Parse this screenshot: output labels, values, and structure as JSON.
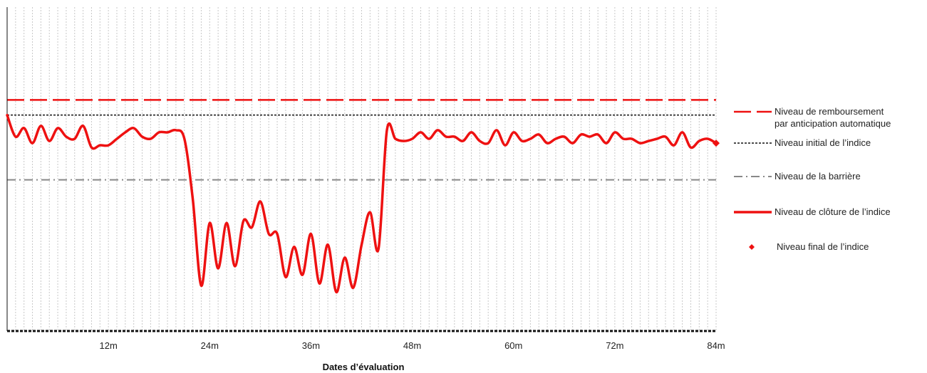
{
  "chart_data": {
    "type": "line",
    "title": "",
    "xlabel": "Dates d’évaluation",
    "ylabel": "",
    "xlim": [
      0,
      84
    ],
    "ylim": [
      0,
      150
    ],
    "x_ticks": [
      {
        "value": 12,
        "label": "12m"
      },
      {
        "value": 24,
        "label": "24m"
      },
      {
        "value": 36,
        "label": "36m"
      },
      {
        "value": 48,
        "label": "48m"
      },
      {
        "value": 60,
        "label": "60m"
      },
      {
        "value": 72,
        "label": "72m"
      },
      {
        "value": 84,
        "label": "84m"
      }
    ],
    "grid": "vertical dotted lines at each month",
    "legend_position": "right",
    "reference_lines": [
      {
        "name": "Niveau de remboursement par anticipation automatique",
        "value": 107,
        "color": "#ee1111",
        "style": "dashed"
      },
      {
        "name": "Niveau initial de l’indice",
        "value": 100,
        "color": "#111111",
        "style": "dotted"
      },
      {
        "name": "Niveau de la barrière",
        "value": 70,
        "color": "#888888",
        "style": "dashdot"
      }
    ],
    "series": [
      {
        "name": "Niveau de clôture de l’indice",
        "color": "#ee1111",
        "style": "solid",
        "x": [
          0,
          1,
          2,
          3,
          4,
          5,
          6,
          7,
          8,
          9,
          10,
          11,
          12,
          13,
          14,
          15,
          16,
          17,
          18,
          19,
          20,
          21,
          22,
          23,
          24,
          25,
          26,
          27,
          28,
          29,
          30,
          31,
          32,
          33,
          34,
          35,
          36,
          37,
          38,
          39,
          40,
          41,
          42,
          43,
          44,
          45,
          46,
          47,
          48,
          49,
          50,
          51,
          52,
          53,
          54,
          55,
          56,
          57,
          58,
          59,
          60,
          61,
          62,
          63,
          64,
          65,
          66,
          67,
          68,
          69,
          70,
          71,
          72,
          73,
          74,
          75,
          76,
          77,
          78,
          79,
          80,
          81,
          82,
          83,
          84
        ],
        "values": [
          100,
          90,
          94,
          87,
          95,
          88,
          94,
          90,
          89,
          95,
          85,
          86,
          86,
          89,
          92,
          94,
          90,
          89,
          92,
          92,
          93,
          89,
          61,
          21,
          50,
          29,
          50,
          30,
          51,
          48,
          60,
          45,
          45,
          25,
          39,
          26,
          45,
          22,
          40,
          18,
          34,
          20,
          40,
          55,
          38,
          93,
          89,
          88,
          89,
          92,
          89,
          93,
          90,
          90,
          88,
          92,
          88,
          87,
          93,
          86,
          92,
          88,
          89,
          91,
          87,
          89,
          90,
          87,
          91,
          90,
          91,
          87,
          92,
          89,
          89,
          87,
          88,
          89,
          90,
          86,
          92,
          85,
          88,
          89,
          87
        ]
      }
    ],
    "final_point": {
      "name": "Niveau final de l’indice",
      "x": 84,
      "value": 87,
      "color": "#ee1111"
    }
  },
  "legend": [
    {
      "key": "autocall",
      "line1": "Niveau de remboursement",
      "line2": "par anticipation automatique"
    },
    {
      "key": "initial",
      "line1": "Niveau initial de l’indice",
      "line2": ""
    },
    {
      "key": "barrier",
      "line1": "Niveau de la barrière",
      "line2": ""
    },
    {
      "key": "close",
      "line1": "Niveau de clôture de l’indice",
      "line2": ""
    },
    {
      "key": "final",
      "line1": "Niveau final de l’indice",
      "line2": ""
    }
  ]
}
